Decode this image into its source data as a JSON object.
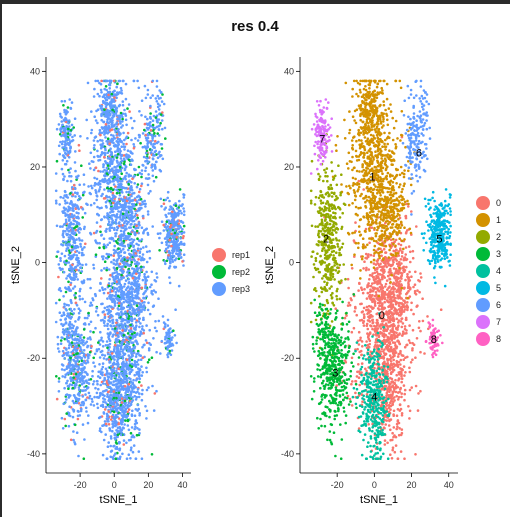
{
  "title": "res 0.4",
  "chart_data": [
    {
      "type": "scatter",
      "xlabel": "tSNE_1",
      "ylabel": "tSNE_2",
      "xlim": [
        -40,
        45
      ],
      "ylim": [
        -44,
        43
      ],
      "xticks": [
        -20,
        0,
        20,
        40
      ],
      "yticks": [
        -40,
        -20,
        0,
        20,
        40
      ],
      "xtick_labels": [
        "-20",
        "0",
        "20",
        "40"
      ],
      "ytick_labels": [
        "-40",
        "-20",
        "0",
        "20",
        "40"
      ],
      "legend": "right",
      "series": [
        {
          "name": "rep1",
          "color": "#F8766D",
          "weight": 0.06
        },
        {
          "name": "rep2",
          "color": "#00BA38",
          "weight": 0.09
        },
        {
          "name": "rep3",
          "color": "#619CFF",
          "weight": 0.85
        }
      ]
    },
    {
      "type": "scatter",
      "xlabel": "tSNE_1",
      "ylabel": "tSNE_2",
      "xlim": [
        -40,
        45
      ],
      "ylim": [
        -44,
        43
      ],
      "xticks": [
        -20,
        0,
        20,
        40
      ],
      "yticks": [
        -40,
        -20,
        0,
        20,
        40
      ],
      "xtick_labels": [
        "-20",
        "0",
        "20",
        "40"
      ],
      "ytick_labels": [
        "-40",
        "-20",
        "0",
        "20",
        "40"
      ],
      "legend": "right",
      "series": [
        {
          "name": "0",
          "color": "#F8766D",
          "center": [
            5,
            -12
          ],
          "label_pos": [
            4,
            -11
          ]
        },
        {
          "name": "1",
          "color": "#D39200",
          "center": [
            0,
            18
          ],
          "label_pos": [
            -1,
            18
          ]
        },
        {
          "name": "2",
          "color": "#93AA00",
          "center": [
            -25,
            5
          ],
          "label_pos": [
            -26,
            5
          ]
        },
        {
          "name": "3",
          "color": "#00BA38",
          "center": [
            -20,
            -23
          ],
          "label_pos": [
            -21,
            -23
          ]
        },
        {
          "name": "4",
          "color": "#00C19F",
          "center": [
            0,
            -27
          ],
          "label_pos": [
            0,
            -28
          ]
        },
        {
          "name": "5",
          "color": "#00B9E3",
          "center": [
            35,
            6
          ],
          "label_pos": [
            35,
            5
          ]
        },
        {
          "name": "6",
          "color": "#619CFF",
          "center": [
            22,
            26
          ],
          "label_pos": [
            24,
            23
          ]
        },
        {
          "name": "7",
          "color": "#DB72FB",
          "center": [
            -28,
            27
          ],
          "label_pos": [
            -28,
            26
          ]
        },
        {
          "name": "8",
          "color": "#FF61C3",
          "center": [
            32,
            -16
          ],
          "label_pos": [
            32,
            -16
          ]
        }
      ]
    }
  ]
}
